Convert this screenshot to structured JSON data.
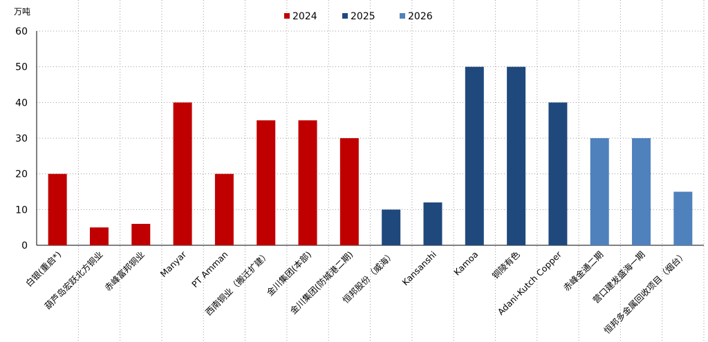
{
  "chart_data": {
    "type": "bar",
    "ylabel": "万吨",
    "ylim": [
      0,
      60
    ],
    "yticks": [
      0,
      10,
      20,
      30,
      40,
      50,
      60
    ],
    "grid": true,
    "legend_position": "top",
    "series": [
      {
        "name": "2024",
        "color": "#C00000"
      },
      {
        "name": "2025",
        "color": "#1F497D"
      },
      {
        "name": "2026",
        "color": "#4F81BD"
      }
    ],
    "categories": [
      "白银(重启*)",
      "葫芦岛宏跃北方铜业",
      "赤峰富邦铜业",
      "Manyar",
      "PT Amman",
      "西南铜业（搬迁扩建）",
      "金川集团(本部)",
      "金川集团(防城港二期)",
      "恒邦股份（威海）",
      "Kansanshi",
      "Kamoa",
      "铜陵有色",
      "Adani-Kutch Copper",
      "赤峰金通二期",
      "营口建发盛海一期",
      "恒邦多金属回收项目（烟台）"
    ],
    "values": [
      20,
      5,
      6,
      40,
      20,
      35,
      35,
      30,
      10,
      12,
      50,
      50,
      40,
      30,
      30,
      15
    ],
    "series_index": [
      0,
      0,
      0,
      0,
      0,
      0,
      0,
      0,
      1,
      1,
      1,
      1,
      1,
      2,
      2,
      2
    ]
  }
}
